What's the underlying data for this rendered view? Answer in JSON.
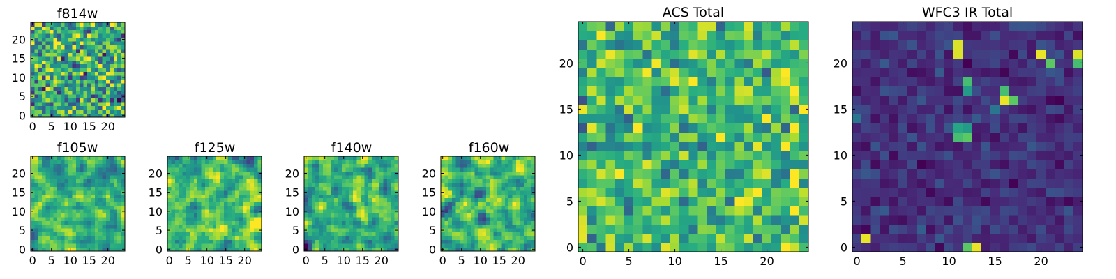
{
  "chart_data": [
    {
      "id": "f814w",
      "type": "heatmap",
      "title": "f814w",
      "palette": "viridis",
      "rows": 25,
      "cols": 25,
      "x_range": [
        0,
        24
      ],
      "y_range": [
        0,
        24
      ],
      "x_ticks": [
        0,
        5,
        10,
        15,
        20
      ],
      "y_ticks": [
        0,
        5,
        10,
        15,
        20
      ],
      "value_range": [
        0,
        1
      ],
      "mean": 0.62,
      "spread": 0.22,
      "seed": 11,
      "smooth": 0,
      "hotspots": []
    },
    {
      "id": "f105w",
      "type": "heatmap",
      "title": "f105w",
      "palette": "viridis",
      "rows": 25,
      "cols": 25,
      "x_range": [
        0,
        24
      ],
      "y_range": [
        0,
        24
      ],
      "x_ticks": [
        0,
        5,
        10,
        15,
        20
      ],
      "y_ticks": [
        0,
        5,
        10,
        15,
        20
      ],
      "value_range": [
        0,
        1
      ],
      "mean": 0.66,
      "spread": 0.2,
      "seed": 23,
      "smooth": 1,
      "hotspots": []
    },
    {
      "id": "f125w",
      "type": "heatmap",
      "title": "f125w",
      "palette": "viridis",
      "rows": 25,
      "cols": 25,
      "x_range": [
        0,
        24
      ],
      "y_range": [
        0,
        24
      ],
      "x_ticks": [
        0,
        5,
        10,
        15,
        20
      ],
      "y_ticks": [
        0,
        5,
        10,
        15,
        20
      ],
      "value_range": [
        0,
        1
      ],
      "mean": 0.7,
      "spread": 0.22,
      "seed": 37,
      "smooth": 1,
      "hotspots": []
    },
    {
      "id": "f140w",
      "type": "heatmap",
      "title": "f140w",
      "palette": "viridis",
      "rows": 25,
      "cols": 25,
      "x_range": [
        0,
        24
      ],
      "y_range": [
        0,
        24
      ],
      "x_ticks": [
        0,
        5,
        10,
        15,
        20
      ],
      "y_ticks": [
        0,
        5,
        10,
        15,
        20
      ],
      "value_range": [
        0,
        1
      ],
      "mean": 0.64,
      "spread": 0.22,
      "seed": 51,
      "smooth": 1,
      "hotspots": []
    },
    {
      "id": "f160w",
      "type": "heatmap",
      "title": "f160w",
      "palette": "viridis",
      "rows": 25,
      "cols": 25,
      "x_range": [
        0,
        24
      ],
      "y_range": [
        0,
        24
      ],
      "x_ticks": [
        0,
        5,
        10,
        15,
        20
      ],
      "y_ticks": [
        0,
        5,
        10,
        15,
        20
      ],
      "value_range": [
        0,
        1
      ],
      "mean": 0.66,
      "spread": 0.24,
      "seed": 67,
      "smooth": 1,
      "hotspots": []
    },
    {
      "id": "acs-total",
      "type": "heatmap",
      "title": "ACS Total",
      "palette": "viridis",
      "rows": 25,
      "cols": 25,
      "x_range": [
        0,
        24
      ],
      "y_range": [
        0,
        24
      ],
      "x_ticks": [
        0,
        5,
        10,
        15,
        20
      ],
      "y_ticks": [
        0,
        5,
        10,
        15,
        20
      ],
      "value_range": [
        0,
        1
      ],
      "mean": 0.68,
      "spread": 0.17,
      "seed": 83,
      "smooth": 0,
      "hotspots": []
    },
    {
      "id": "wfc3-ir-total",
      "type": "heatmap",
      "title": "WFC3 IR Total",
      "palette": "viridis",
      "rows": 25,
      "cols": 25,
      "x_range": [
        0,
        24
      ],
      "y_range": [
        0,
        24
      ],
      "x_ticks": [
        0,
        5,
        10,
        15,
        20
      ],
      "y_ticks": [
        0,
        5,
        10,
        15,
        20
      ],
      "value_range": [
        0,
        1
      ],
      "mean": 0.15,
      "spread": 0.06,
      "seed": 97,
      "smooth": 0,
      "hotspots": [
        [
          11,
          21,
          0.95
        ],
        [
          11,
          22,
          0.95
        ],
        [
          20,
          21,
          0.97
        ],
        [
          24,
          21,
          0.95
        ],
        [
          21,
          20,
          0.75
        ],
        [
          24,
          20,
          0.7
        ],
        [
          16,
          16,
          0.97
        ],
        [
          17,
          16,
          0.75
        ],
        [
          16,
          17,
          0.7
        ],
        [
          12,
          18,
          0.7
        ],
        [
          12,
          17,
          0.55
        ],
        [
          11,
          12,
          0.7
        ],
        [
          12,
          12,
          0.75
        ],
        [
          11,
          13,
          0.6
        ],
        [
          12,
          13,
          0.55
        ],
        [
          1,
          1,
          0.97
        ],
        [
          13,
          0,
          0.97
        ],
        [
          12,
          0,
          0.75
        ],
        [
          0,
          14,
          0.4
        ],
        [
          15,
          15,
          0.4
        ]
      ]
    }
  ]
}
